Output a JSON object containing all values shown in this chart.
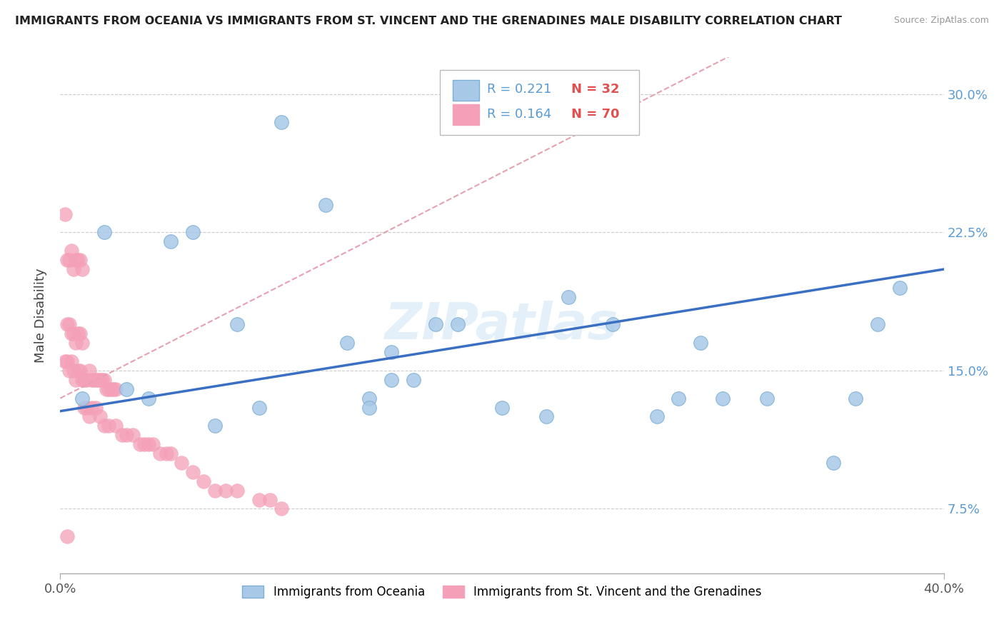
{
  "title": "IMMIGRANTS FROM OCEANIA VS IMMIGRANTS FROM ST. VINCENT AND THE GRENADINES MALE DISABILITY CORRELATION CHART",
  "source": "Source: ZipAtlas.com",
  "ylabel": "Male Disability",
  "series1_label": "Immigrants from Oceania",
  "series2_label": "Immigrants from St. Vincent and the Grenadines",
  "watermark": "ZIPatlas",
  "blue_scatter_color": "#a8c8e8",
  "blue_edge_color": "#7bafd4",
  "pink_scatter_color": "#f4a0b8",
  "pink_edge_color": "#f4a0b8",
  "blue_line_color": "#3a6fc4",
  "pink_line_color": "#e8a0b0",
  "xlim": [
    0.0,
    0.4
  ],
  "ylim": [
    0.04,
    0.32
  ],
  "ytick_vals": [
    0.075,
    0.15,
    0.225,
    0.3
  ],
  "ytick_labels": [
    "7.5%",
    "15.0%",
    "22.5%",
    "30.0%"
  ],
  "legend_r1": "R = 0.221",
  "legend_n1": "N = 32",
  "legend_r2": "R = 0.164",
  "legend_n2": "N = 70",
  "oceania_x": [
    0.01,
    0.02,
    0.03,
    0.04,
    0.05,
    0.06,
    0.07,
    0.08,
    0.09,
    0.1,
    0.12,
    0.13,
    0.14,
    0.15,
    0.16,
    0.17,
    0.18,
    0.2,
    0.22,
    0.23,
    0.25,
    0.27,
    0.29,
    0.3,
    0.32,
    0.35,
    0.36,
    0.37,
    0.14,
    0.15,
    0.28,
    0.38
  ],
  "oceania_y": [
    0.135,
    0.225,
    0.14,
    0.135,
    0.22,
    0.225,
    0.12,
    0.175,
    0.13,
    0.285,
    0.24,
    0.165,
    0.135,
    0.16,
    0.145,
    0.175,
    0.175,
    0.13,
    0.125,
    0.19,
    0.175,
    0.125,
    0.165,
    0.135,
    0.135,
    0.1,
    0.135,
    0.175,
    0.13,
    0.145,
    0.135,
    0.195
  ],
  "stvincent_x": [
    0.002,
    0.003,
    0.004,
    0.005,
    0.006,
    0.007,
    0.008,
    0.009,
    0.01,
    0.011,
    0.012,
    0.013,
    0.014,
    0.015,
    0.016,
    0.017,
    0.018,
    0.019,
    0.02,
    0.021,
    0.022,
    0.023,
    0.024,
    0.025,
    0.003,
    0.004,
    0.005,
    0.006,
    0.007,
    0.008,
    0.009,
    0.01,
    0.011,
    0.012,
    0.013,
    0.014,
    0.016,
    0.018,
    0.02,
    0.022,
    0.025,
    0.028,
    0.03,
    0.033,
    0.036,
    0.038,
    0.04,
    0.042,
    0.045,
    0.048,
    0.05,
    0.055,
    0.06,
    0.065,
    0.07,
    0.075,
    0.08,
    0.09,
    0.095,
    0.1,
    0.003,
    0.004,
    0.005,
    0.006,
    0.007,
    0.008,
    0.009,
    0.01,
    0.002,
    0.003
  ],
  "stvincent_y": [
    0.155,
    0.155,
    0.15,
    0.155,
    0.15,
    0.145,
    0.15,
    0.15,
    0.145,
    0.145,
    0.145,
    0.15,
    0.145,
    0.145,
    0.145,
    0.145,
    0.145,
    0.145,
    0.145,
    0.14,
    0.14,
    0.14,
    0.14,
    0.14,
    0.21,
    0.21,
    0.215,
    0.205,
    0.21,
    0.21,
    0.21,
    0.205,
    0.13,
    0.13,
    0.125,
    0.13,
    0.13,
    0.125,
    0.12,
    0.12,
    0.12,
    0.115,
    0.115,
    0.115,
    0.11,
    0.11,
    0.11,
    0.11,
    0.105,
    0.105,
    0.105,
    0.1,
    0.095,
    0.09,
    0.085,
    0.085,
    0.085,
    0.08,
    0.08,
    0.075,
    0.175,
    0.175,
    0.17,
    0.17,
    0.165,
    0.17,
    0.17,
    0.165,
    0.235,
    0.06
  ]
}
